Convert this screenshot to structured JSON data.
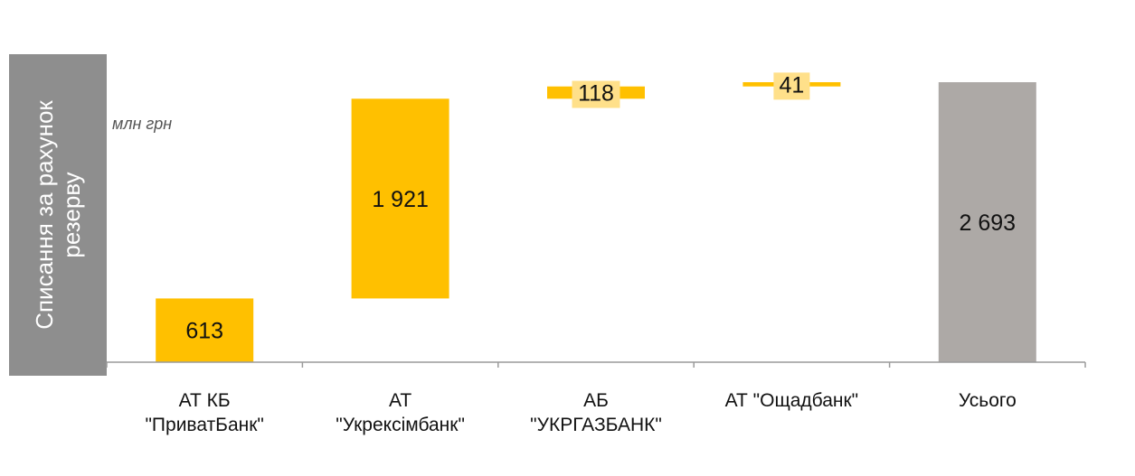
{
  "side_title": "Списання за рахунок\nрезерву",
  "unit": "млн грн",
  "colors": {
    "bar": "#FFC000",
    "total": "#ADA9A6",
    "label_bg": "#FFE08A",
    "panel": "#8E8E8E"
  },
  "chart_data": {
    "type": "bar",
    "subtype": "waterfall",
    "categories": [
      "АТ КБ\n\"ПриватБанк\"",
      "АТ\n\"Укрексімбанк\"",
      "АБ\n\"УКРГАЗБАНК\"",
      "АТ \"Ощадбанк\"",
      "Усього"
    ],
    "values": [
      613,
      1921,
      118,
      41,
      2693
    ],
    "value_labels": [
      "613",
      "1 921",
      "118",
      "41",
      "2 693"
    ],
    "total_index": 4,
    "ylim": [
      0,
      2693
    ],
    "grid": false,
    "legend": "none"
  }
}
